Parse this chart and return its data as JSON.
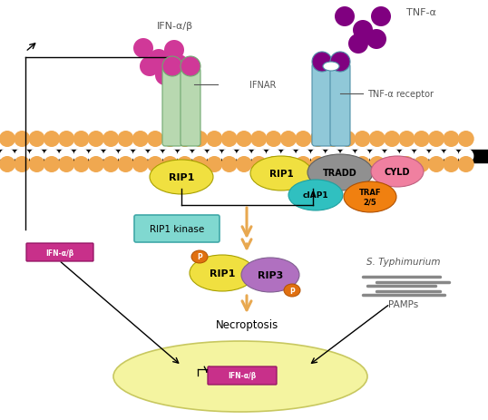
{
  "fig_width": 5.38,
  "fig_height": 4.64,
  "dpi": 100,
  "bg_color": "#ffffff",
  "ifn_ab_label": "IFN-α/β",
  "tnf_a_label": "TNF-α",
  "ifnar_label": "IFNAR",
  "tnf_receptor_label": "TNF-α receptor",
  "rip1_kinase_label": "RIP1 kinase",
  "necroptosis_label": "Necroptosis",
  "pamps_label": "PAMPs",
  "s_typhimurium_label": "S. Typhimurium",
  "ifn_gene_label": "IFN-α/β",
  "ifn_box_label": "IFN-α/β",
  "rip1_color": "#f0e040",
  "rip3_color": "#b070c0",
  "tradd_color": "#909090",
  "ciap1_color": "#30c0c0",
  "traf_color": "#f08010",
  "cyld_color": "#f080a0",
  "ifnar_receptor_color": "#b8d8b0",
  "tnf_receptor_color": "#90c8d8",
  "ifn_molecule_color": "#d03898",
  "tnf_molecule_color": "#800080",
  "nucleus_color": "#f4f4a0",
  "nucleus_edge_color": "#c8c860",
  "arrow_color": "#e8a850",
  "ifn_box_color": "#c8308a",
  "rip1_kinase_box_color": "#80d8d0",
  "phospho_color": "#e07010",
  "membrane_color": "#f0a850",
  "mem_stripe_color": "#000000"
}
